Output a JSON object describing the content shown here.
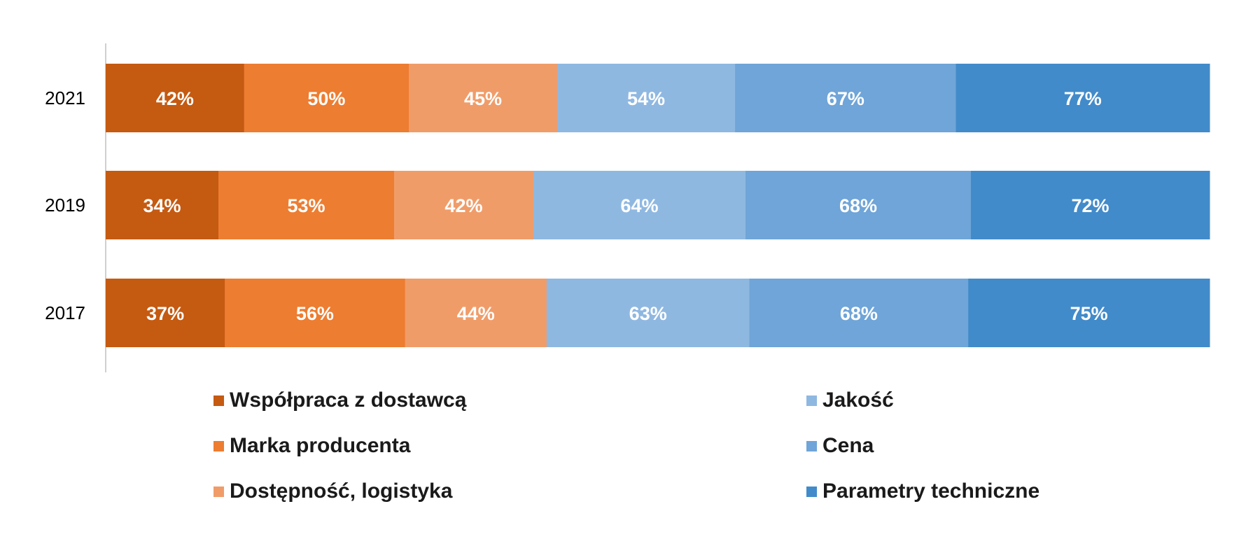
{
  "chart_data": {
    "type": "bar",
    "orientation": "horizontal",
    "stacked": true,
    "categories": [
      "2021",
      "2019",
      "2017"
    ],
    "series": [
      {
        "name": "Współpraca z dostawcą",
        "color": "#C55A11",
        "values": [
          42,
          34,
          37
        ],
        "labels": [
          "42%",
          "34%",
          "37%"
        ]
      },
      {
        "name": "Marka producenta",
        "color": "#ED7D31",
        "values": [
          50,
          53,
          56
        ],
        "labels": [
          "50%",
          "53%",
          "56%"
        ]
      },
      {
        "name": "Dostępność, logistyka",
        "color": "#F09C69",
        "values": [
          45,
          42,
          44
        ],
        "labels": [
          "45%",
          "42%",
          "44%"
        ]
      },
      {
        "name": "Jakość",
        "color": "#8FB8E1",
        "values": [
          54,
          64,
          63
        ],
        "labels": [
          "54%",
          "64%",
          "63%"
        ]
      },
      {
        "name": "Cena",
        "color": "#6FA5D8",
        "values": [
          67,
          68,
          68
        ],
        "labels": [
          "67%",
          "68%",
          "68%"
        ]
      },
      {
        "name": "Parametry techniczne",
        "color": "#428BCA",
        "values": [
          77,
          72,
          75
        ],
        "labels": [
          "77%",
          "72%",
          "75%"
        ]
      }
    ],
    "legend_position": "bottom",
    "grid": false
  }
}
